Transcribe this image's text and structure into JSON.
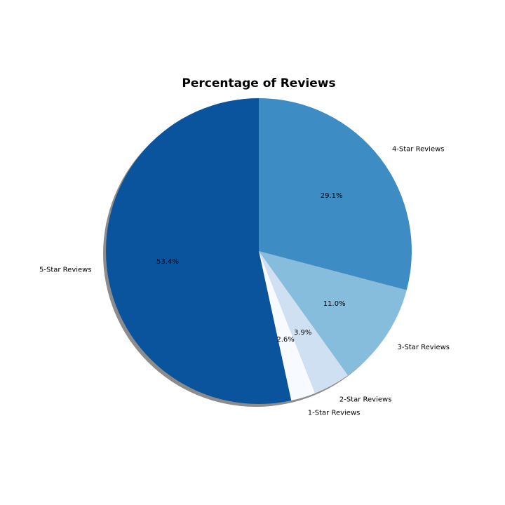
{
  "chart_data": {
    "type": "pie",
    "title": "Percentage of Reviews",
    "categories": [
      "4-Star Reviews",
      "3-Star Reviews",
      "2-Star Reviews",
      "1-Star Reviews",
      "5-Star Reviews"
    ],
    "values": [
      29.1,
      11.0,
      3.9,
      2.6,
      53.4
    ],
    "value_labels": [
      "29.1%",
      "11.0%",
      "3.9%",
      "2.6%",
      "53.4%"
    ],
    "colors": [
      "#3d8cc4",
      "#87bddc",
      "#cfe0f2",
      "#f7fbff",
      "#0a549e"
    ],
    "shadow": true,
    "start_angle_deg": 90,
    "direction": "clockwise"
  }
}
